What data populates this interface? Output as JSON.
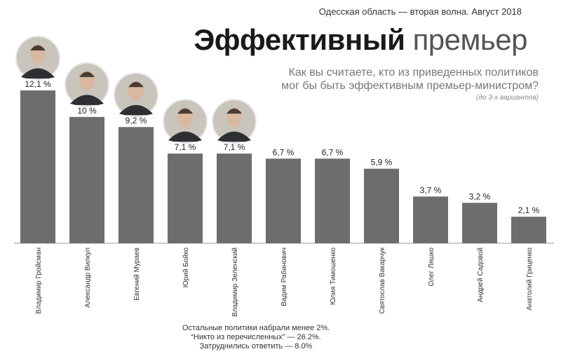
{
  "header": {
    "region": "Одесская область — вторая волна. Август 2018",
    "title_bold": "Эффективный",
    "title_light": "премьер",
    "question": "Как вы считаете, кто из приведенных политиков мог бы быть эффективным премьер-министром?",
    "hint": "(до 3-х вариантов)"
  },
  "chart_data": {
    "type": "bar",
    "categories": [
      "Владимир Гройсман",
      "Александр Вилкул",
      "Евгений Мураев",
      "Юрий Бойко",
      "Владимир Зеленский",
      "Вадим Рабинович",
      "Юлия Тимошенко",
      "Святослав Вакарчук",
      "Олег Ляшко",
      "Андрей Садовой",
      "Анатолий Гриценко"
    ],
    "values": [
      12.1,
      10,
      9.2,
      7.1,
      7.1,
      6.7,
      6.7,
      5.9,
      3.7,
      3.2,
      2.1
    ],
    "value_labels": [
      "12,1 %",
      "10 %",
      "9,2 %",
      "7,1 %",
      "7,1 %",
      "6,7 %",
      "6,7 %",
      "5,9 %",
      "3,7 %",
      "3,2 %",
      "2,1 %"
    ],
    "portraits": [
      "Владимир Гройсман",
      "Александр Вилкул",
      "Евгений Мураев",
      "Юрий Бойко",
      "Владимир Зеленский"
    ],
    "ylim": [
      0,
      12.1
    ],
    "bar_color": "#6b6e6b",
    "grid": false,
    "legend": "none",
    "xlabel": "",
    "ylabel": ""
  },
  "footnote": [
    "Остальные политики набрали менее 2%.",
    "“Никто из перечисленных” — 26.2%.",
    "Затруднились ответить — 8.0%"
  ]
}
